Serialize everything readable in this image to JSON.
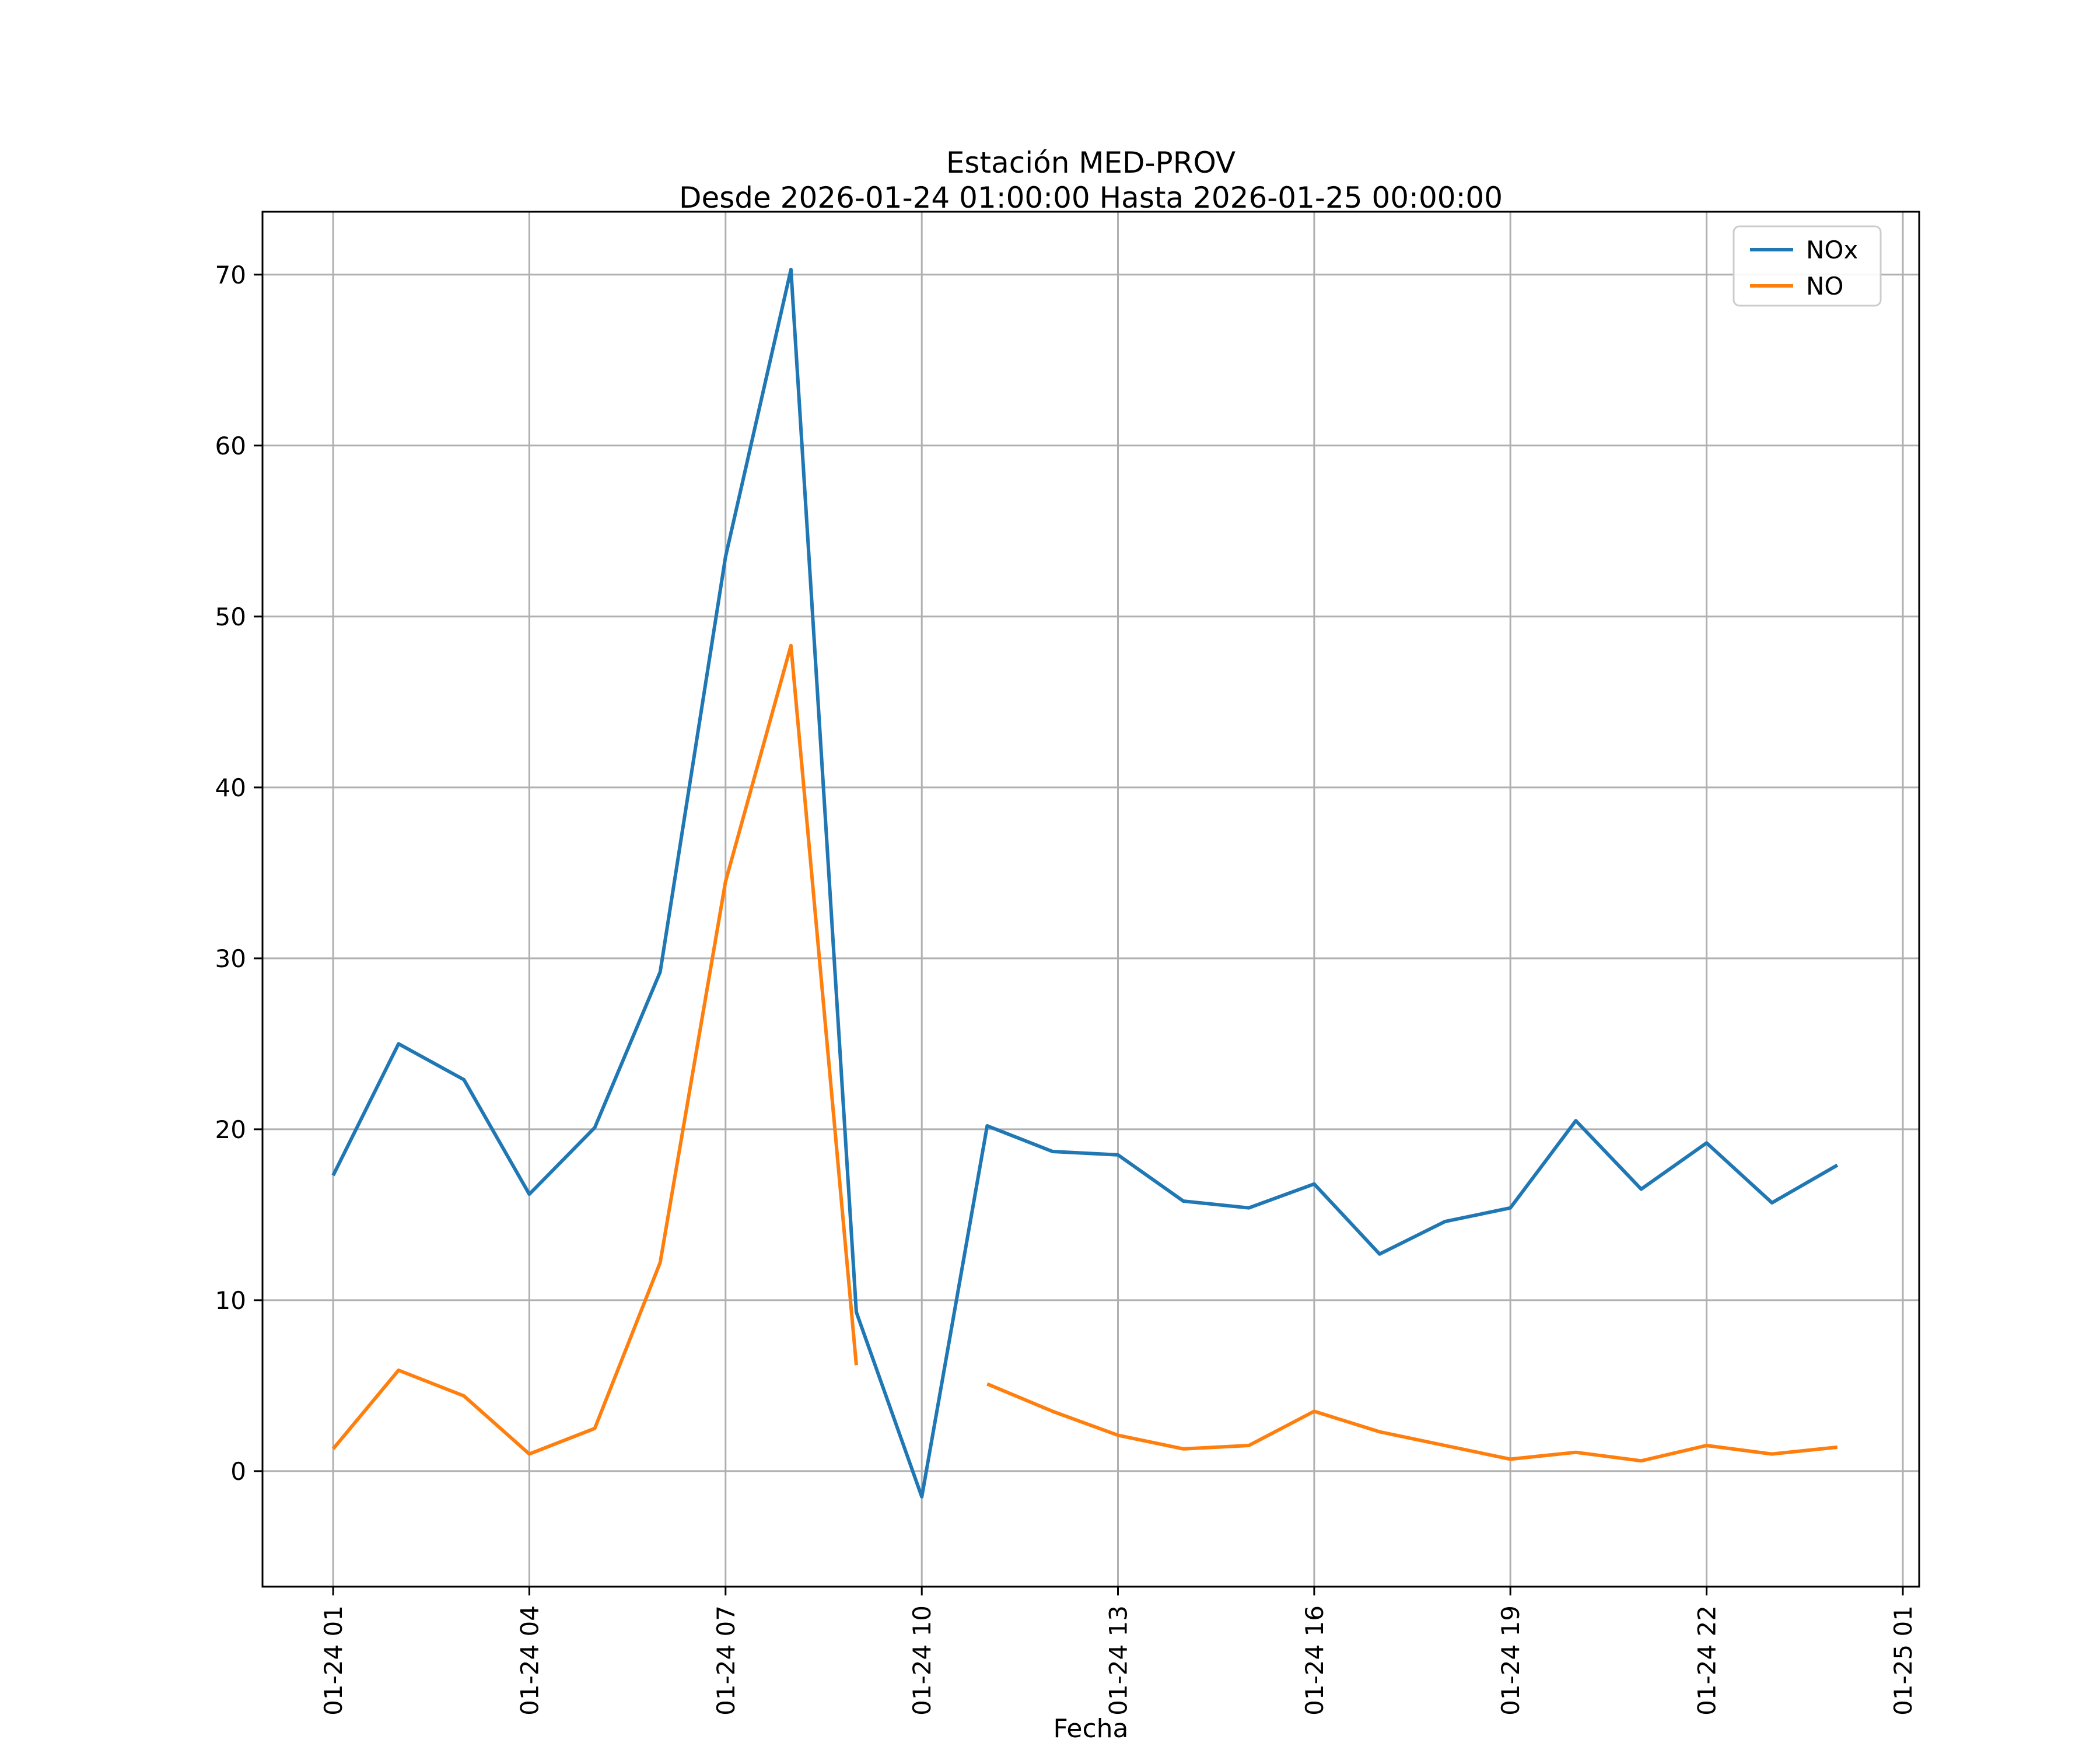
{
  "figure": {
    "title": "Estación MED-PROV",
    "subtitle": "Desde 2026-01-24 01:00:00 Hasta 2026-01-25 00:00:00",
    "xlabel": "Fecha"
  },
  "legend": {
    "position": "upper right",
    "items": [
      {
        "label": "NOx",
        "color": "#1f77b4"
      },
      {
        "label": "NO",
        "color": "#ff7f0e"
      }
    ]
  },
  "chart_data": {
    "type": "line",
    "title": "Estación MED-PROV",
    "subtitle": "Desde 2026-01-24 01:00:00 Hasta 2026-01-25 00:00:00",
    "xlabel": "Fecha",
    "ylabel": "",
    "x_description": "hour of day, 2026-01-24 01:00 through 2026-01-25 00:00 (hourly)",
    "x": [
      1,
      2,
      3,
      4,
      5,
      6,
      7,
      8,
      9,
      10,
      11,
      12,
      13,
      14,
      15,
      16,
      17,
      18,
      19,
      20,
      21,
      22,
      23,
      24
    ],
    "series": [
      {
        "name": "NOx",
        "color": "#1f77b4",
        "values": [
          17.3,
          25.0,
          22.9,
          16.2,
          20.1,
          29.2,
          53.5,
          70.3,
          9.3,
          -1.5,
          20.2,
          18.7,
          18.5,
          15.8,
          15.4,
          16.8,
          12.7,
          14.6,
          15.4,
          20.5,
          16.5,
          19.2,
          15.7,
          17.9
        ]
      },
      {
        "name": "NO",
        "color": "#ff7f0e",
        "values": [
          1.3,
          5.9,
          4.4,
          1.0,
          2.5,
          12.2,
          34.5,
          48.3,
          6.2,
          null,
          5.1,
          3.5,
          2.1,
          1.3,
          1.5,
          3.5,
          2.3,
          1.5,
          0.7,
          1.1,
          0.6,
          1.5,
          1.0,
          1.4
        ]
      }
    ],
    "x_ticks": {
      "hours": [
        1,
        4,
        7,
        10,
        13,
        16,
        19,
        22,
        25
      ],
      "labels": [
        "01-24 01",
        "01-24 04",
        "01-24 07",
        "01-24 10",
        "01-24 13",
        "01-24 16",
        "01-24 19",
        "01-24 22",
        "01-25 01"
      ],
      "rotation_deg": 90
    },
    "y_ticks": [
      0,
      10,
      20,
      30,
      40,
      50,
      60,
      70
    ],
    "xlim": [
      -0.08,
      25.25
    ],
    "ylim": [
      -6.76,
      73.68
    ],
    "grid": true,
    "grid_color": "#b0b0b0",
    "line_width": 6,
    "legend_position": "upper right"
  }
}
